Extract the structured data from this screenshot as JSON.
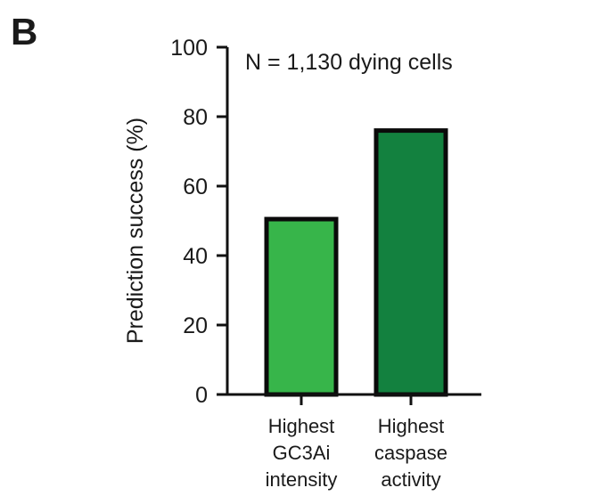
{
  "panel_label": "B",
  "chart_data": {
    "type": "bar",
    "categories": [
      [
        "Highest",
        "GC3Ai",
        "intensity"
      ],
      [
        "Highest",
        "caspase",
        "activity"
      ]
    ],
    "values": [
      50.5,
      76
    ],
    "colors": [
      "#37b54a",
      "#13813f"
    ],
    "ylabel": "Prediction success (%)",
    "ylim": [
      0,
      100
    ],
    "yticks": [
      0,
      20,
      40,
      60,
      80,
      100
    ],
    "annotation": "N = 1,130 dying cells",
    "grid": false,
    "legend": "none"
  }
}
